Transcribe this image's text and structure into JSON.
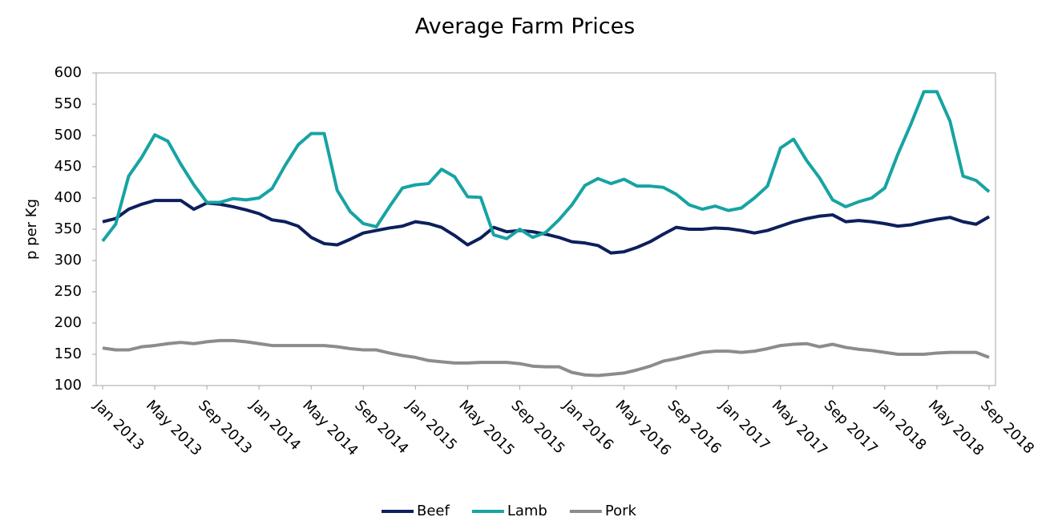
{
  "chart_data": {
    "type": "line",
    "title": "Average Farm Prices",
    "y_label": "p per Kg",
    "categories": [
      "Jan 2013",
      null,
      null,
      null,
      "May 2013",
      null,
      null,
      null,
      "Sep 2013",
      null,
      null,
      null,
      "Jan 2014",
      null,
      null,
      null,
      "May 2014",
      null,
      null,
      null,
      "Sep 2014",
      null,
      null,
      null,
      "Jan 2015",
      null,
      null,
      null,
      "May 2015",
      null,
      null,
      null,
      "Sep 2015",
      null,
      null,
      null,
      "Jan 2016",
      null,
      null,
      null,
      "May 2016",
      null,
      null,
      null,
      "Sep 2016",
      null,
      null,
      null,
      "Jan 2017",
      null,
      null,
      null,
      "May 2017",
      null,
      null,
      null,
      "Sep 2017",
      null,
      null,
      null,
      "Jan 2018",
      null,
      null,
      null,
      "May 2018",
      null,
      null,
      null,
      "Sep 2018"
    ],
    "series": [
      {
        "name": "Beef",
        "color": "#0d1f5c",
        "values": [
          362,
          367,
          382,
          390,
          396,
          396,
          396,
          382,
          392,
          390,
          386,
          381,
          375,
          365,
          362,
          355,
          337,
          327,
          325,
          334,
          344,
          348,
          352,
          355,
          362,
          359,
          353,
          340,
          325,
          336,
          353,
          346,
          348,
          346,
          342,
          337,
          330,
          328,
          324,
          312,
          314,
          321,
          330,
          342,
          353,
          350,
          350,
          352,
          351,
          348,
          344,
          348,
          355,
          362,
          367,
          371,
          373,
          362,
          364,
          362,
          359,
          355,
          357,
          362,
          366,
          369,
          362,
          358,
          370
        ]
      },
      {
        "name": "Lamb",
        "color": "#17a3a3",
        "values": [
          331,
          358,
          435,
          465,
          501,
          491,
          454,
          421,
          393,
          393,
          399,
          397,
          400,
          415,
          452,
          485,
          503,
          503,
          412,
          378,
          359,
          354,
          386,
          416,
          421,
          423,
          446,
          434,
          402,
          401,
          341,
          335,
          350,
          337,
          345,
          365,
          389,
          420,
          431,
          423,
          430,
          419,
          419,
          417,
          406,
          389,
          382,
          387,
          380,
          384,
          400,
          419,
          480,
          494,
          460,
          432,
          397,
          386,
          394,
          400,
          416,
          470,
          518,
          570,
          570,
          523,
          435,
          428,
          410
        ]
      },
      {
        "name": "Pork",
        "color": "#8c8c8c",
        "values": [
          160,
          157,
          157,
          162,
          164,
          167,
          169,
          167,
          170,
          172,
          172,
          170,
          167,
          164,
          164,
          164,
          164,
          164,
          162,
          159,
          157,
          157,
          152,
          148,
          145,
          140,
          138,
          136,
          136,
          137,
          137,
          137,
          135,
          131,
          130,
          130,
          121,
          117,
          116,
          118,
          120,
          125,
          131,
          139,
          143,
          148,
          153,
          155,
          155,
          153,
          155,
          159,
          164,
          166,
          167,
          162,
          166,
          161,
          158,
          156,
          153,
          150,
          150,
          150,
          152,
          153,
          153,
          153,
          145
        ]
      }
    ],
    "ylim": [
      100,
      600
    ],
    "yticks": [
      100,
      150,
      200,
      250,
      300,
      350,
      400,
      450,
      500,
      550,
      600
    ],
    "grid": false,
    "legend": "bottom"
  }
}
